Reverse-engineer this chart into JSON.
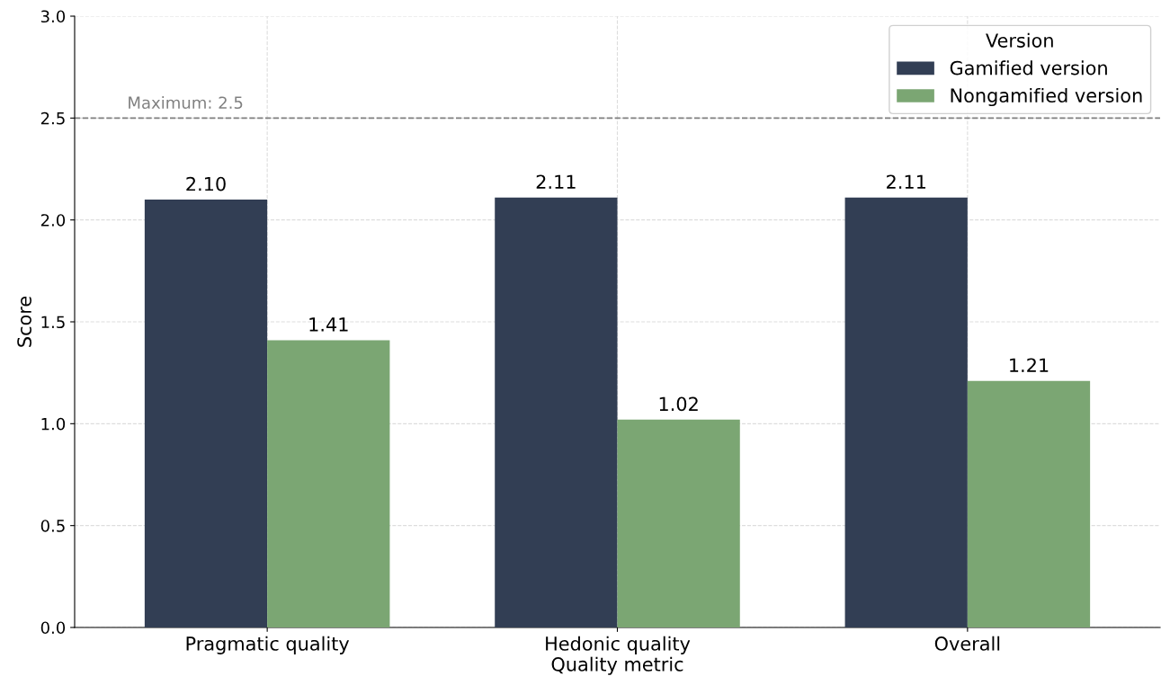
{
  "chart_data": {
    "type": "bar",
    "categories": [
      "Pragmatic quality",
      "Hedonic quality",
      "Overall"
    ],
    "series": [
      {
        "name": "Gamified version",
        "color": "#323e54",
        "values": [
          2.1,
          2.11,
          2.11
        ],
        "value_labels": [
          "2.10",
          "2.11",
          "2.11"
        ]
      },
      {
        "name": "Nongamified version",
        "color": "#7ba673",
        "values": [
          1.41,
          1.02,
          1.21
        ],
        "value_labels": [
          "1.41",
          "1.02",
          "1.21"
        ]
      }
    ],
    "xlabel": "Quality metric",
    "ylabel": "Score",
    "legend_title": "Version",
    "legend": "top right",
    "ylim": [
      0,
      3.0
    ],
    "yticks": [
      {
        "value": 0,
        "label": "0.0"
      },
      {
        "value": 0.5,
        "label": "0.5"
      },
      {
        "value": 1.0,
        "label": "1.0"
      },
      {
        "value": 1.5,
        "label": "1.5"
      },
      {
        "value": 2.0,
        "label": "2.0"
      },
      {
        "value": 2.5,
        "label": "2.5"
      },
      {
        "value": 3.0,
        "label": "3.0"
      }
    ],
    "grid": true,
    "ref_lines": [
      {
        "axis": "y",
        "value": 2.5,
        "label": "Maximum: 2.5",
        "color": "#808080",
        "line_style": "dashed"
      }
    ]
  }
}
